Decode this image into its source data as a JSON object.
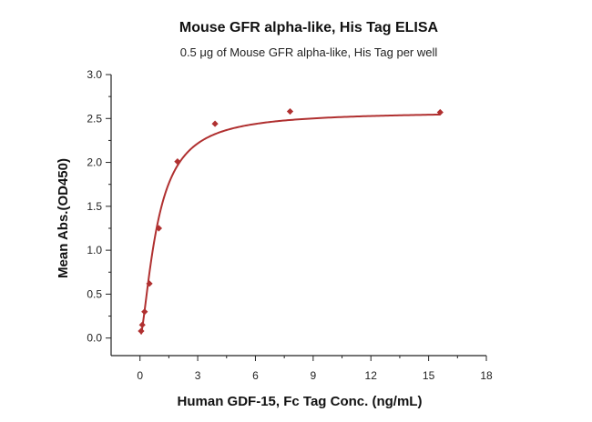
{
  "chart_data": {
    "type": "scatter",
    "title": "Mouse GFR alpha-like, His Tag ELISA",
    "subtitle": "0.5 μg of Mouse GFR alpha-like, His Tag per well",
    "xlabel": "Human GDF-15, Fc Tag Conc. (ng/mL)",
    "ylabel": "Mean Abs.(OD450)",
    "xlim": [
      -1.5,
      18
    ],
    "ylim": [
      -0.2,
      3.0
    ],
    "x_ticks": [
      0,
      3,
      6,
      9,
      12,
      15,
      18
    ],
    "y_ticks": [
      0.0,
      0.5,
      1.0,
      1.5,
      2.0,
      2.5,
      3.0
    ],
    "x_tick_labels": [
      "0",
      "3",
      "6",
      "9",
      "12",
      "15",
      "18"
    ],
    "y_tick_labels": [
      "0.0",
      "0.5",
      "1.0",
      "1.5",
      "2.0",
      "2.5",
      "3.0"
    ],
    "grid": false,
    "series": [
      {
        "points": [
          {
            "x": 0.06,
            "y": 0.08
          },
          {
            "x": 0.12,
            "y": 0.15
          },
          {
            "x": 0.24,
            "y": 0.3
          },
          {
            "x": 0.49,
            "y": 0.62
          },
          {
            "x": 0.98,
            "y": 1.25
          },
          {
            "x": 1.95,
            "y": 2.01
          },
          {
            "x": 3.9,
            "y": 2.44
          },
          {
            "x": 7.8,
            "y": 2.58
          },
          {
            "x": 15.6,
            "y": 2.57
          }
        ],
        "marker": "diamond",
        "color": "#b03030",
        "fit": {
          "model": "four-parameter logistic",
          "bottom": 0.0,
          "top": 2.58,
          "ec50": 0.9,
          "hill": 1.5,
          "x_range": [
            0.06,
            15.6
          ],
          "color": "#b03030"
        }
      }
    ]
  }
}
